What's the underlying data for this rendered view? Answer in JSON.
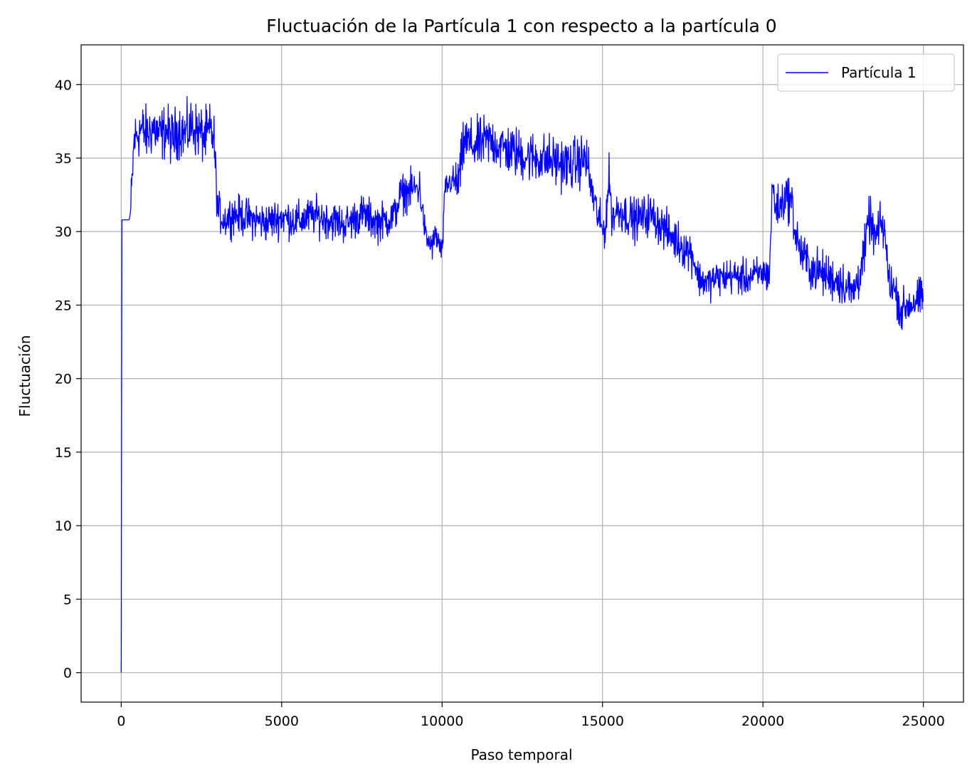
{
  "chart_data": {
    "type": "line",
    "title": "Fluctuación de la Partícula 1 con respecto a la partícula 0",
    "xlabel": "Paso temporal",
    "ylabel": "Fluctuación",
    "xlim": [
      -1250,
      26250
    ],
    "ylim": [
      -2,
      42.7
    ],
    "xticks": [
      0,
      5000,
      10000,
      15000,
      20000,
      25000
    ],
    "xtick_labels": [
      "0",
      "5000",
      "10000",
      "15000",
      "20000",
      "25000"
    ],
    "yticks": [
      0,
      5,
      10,
      15,
      20,
      25,
      30,
      35,
      40
    ],
    "ytick_labels": [
      "0",
      "5",
      "10",
      "15",
      "20",
      "25",
      "30",
      "35",
      "40"
    ],
    "grid": true,
    "legend_position": "upper right",
    "series": [
      {
        "name": "Partícula 1",
        "color": "#0000ff",
        "x": [
          0,
          20,
          50,
          100,
          200,
          250,
          300,
          400,
          600,
          800,
          1000,
          1200,
          1400,
          1600,
          1800,
          2000,
          2200,
          2400,
          2600,
          2800,
          2900,
          3000,
          3200,
          3500,
          4000,
          4500,
          5000,
          5500,
          6000,
          6500,
          7000,
          7500,
          8000,
          8500,
          8700,
          9000,
          9300,
          9500,
          9700,
          9800,
          10000,
          10100,
          10300,
          10500,
          10700,
          11000,
          11500,
          12000,
          12500,
          13000,
          13500,
          14000,
          14500,
          14600,
          14800,
          15000,
          15100,
          15200,
          15300,
          15500,
          16000,
          16500,
          17000,
          17500,
          17800,
          18000,
          18300,
          18500,
          19000,
          19500,
          20000,
          20200,
          20300,
          20350,
          20500,
          20700,
          20900,
          21000,
          21200,
          21500,
          22000,
          22500,
          22800,
          23000,
          23200,
          23300,
          23500,
          23700,
          23800,
          23900,
          24000,
          24200,
          24300,
          24500,
          24800,
          25000
        ],
        "values": [
          0,
          30.8,
          30.8,
          30.8,
          30.8,
          30.8,
          31.5,
          36.2,
          37.0,
          36.6,
          37.1,
          36.5,
          36.9,
          36.3,
          37.0,
          36.6,
          37.2,
          36.8,
          36.4,
          36.9,
          36.0,
          31.5,
          30.8,
          31.2,
          30.9,
          30.6,
          31.0,
          30.7,
          31.1,
          30.8,
          30.5,
          31.2,
          30.6,
          31.0,
          32.5,
          32.8,
          33.0,
          29.5,
          29.0,
          29.8,
          28.5,
          33.0,
          33.5,
          33.2,
          36.2,
          35.8,
          36.2,
          35.6,
          35.2,
          35.0,
          34.8,
          34.5,
          35.0,
          33.5,
          31.5,
          30.0,
          30.5,
          33.8,
          31.0,
          31.5,
          30.8,
          31.2,
          30.0,
          29.0,
          28.5,
          26.8,
          26.5,
          26.8,
          27.0,
          26.8,
          27.2,
          27.0,
          33.5,
          32.0,
          31.5,
          32.5,
          32.0,
          30.0,
          28.5,
          27.5,
          27.0,
          26.5,
          25.8,
          27.0,
          29.0,
          31.0,
          29.5,
          30.5,
          30.0,
          27.0,
          26.5,
          25.5,
          24.5,
          25.0,
          25.3,
          25.5
        ]
      }
    ]
  }
}
